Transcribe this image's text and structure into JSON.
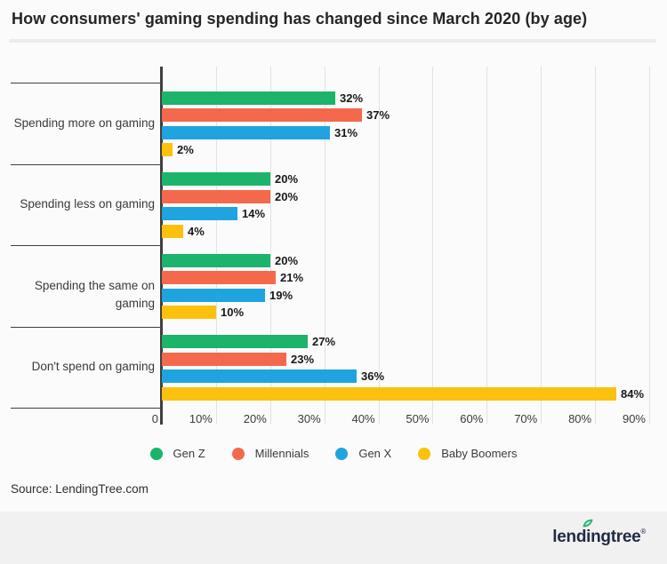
{
  "title": "How consumers' gaming spending has changed since March 2020 (by age)",
  "source": {
    "text": "Source: LendingTree.com"
  },
  "footer": {
    "logo_text_pre": "lend",
    "logo_text_i": "i",
    "logo_text_post": "ngtree",
    "trademark": "®"
  },
  "colors": {
    "gen_z": "#1CB36B",
    "millennials": "#F4694C",
    "gen_x": "#1FA4E0",
    "baby_boomers": "#FCC10D",
    "axis": "#3F3F3F",
    "grid": "#E2E2E2",
    "footer_bg": "#F1F1F2",
    "logo_navy": "#1F2B45",
    "leaf_green": "#2AB573"
  },
  "chart_data": {
    "type": "bar",
    "orientation": "horizontal",
    "title": "How consumers' gaming spending has changed since March 2020 (by age)",
    "categories": [
      "Spending more on gaming",
      "Spending less on gaming",
      "Spending the same on gaming",
      "Don't spend on gaming"
    ],
    "series": [
      {
        "name": "Gen Z",
        "color": "#1CB36B",
        "values": [
          32,
          20,
          20,
          27
        ]
      },
      {
        "name": "Millennials",
        "color": "#F4694C",
        "values": [
          37,
          20,
          21,
          23
        ]
      },
      {
        "name": "Gen X",
        "color": "#1FA4E0",
        "values": [
          31,
          14,
          19,
          36
        ]
      },
      {
        "name": "Baby Boomers",
        "color": "#FCC10D",
        "values": [
          2,
          4,
          10,
          84
        ]
      }
    ],
    "value_suffix": "%",
    "x_ticks": [
      "0",
      "10%",
      "20%",
      "30%",
      "40%",
      "50%",
      "60%",
      "70%",
      "80%",
      "90%"
    ],
    "xlim": [
      0,
      91
    ],
    "grid": true,
    "legend_position": "bottom"
  }
}
